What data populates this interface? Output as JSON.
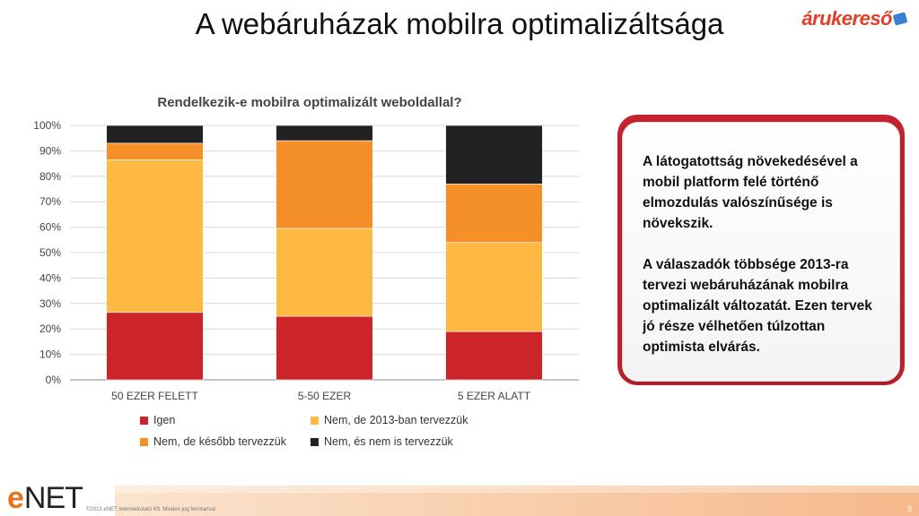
{
  "slide": {
    "title": "A webáruházak mobilra optimalizáltsága",
    "brand": "árukereső",
    "copyright": "©2013 eNET Internetkutató Kft. Minden jog fenntartva!",
    "page_number": "9",
    "footer_logo_letter": "e",
    "footer_logo_text": "NET"
  },
  "callout": {
    "paragraph_1": "A látogatottság növekedésével a mobil platform felé történő elmozdulás valószínűsége is növekszik.",
    "paragraph_2": "A válaszadók többsége 2013-ra tervezi webáruházának mobilra optimalizált változatát. Ezen tervek jó része vélhetően túlzottan optimista elvárás."
  },
  "chart_data": {
    "type": "bar",
    "stacked": true,
    "title": "Rendelkezik-e mobilra optimalizált weboldallal?",
    "categories": [
      "50 EZER FELETT",
      "5-50 EZER",
      "5 EZER ALATT"
    ],
    "ylim": [
      0,
      100
    ],
    "yticks": [
      "0%",
      "10%",
      "20%",
      "30%",
      "40%",
      "50%",
      "60%",
      "70%",
      "80%",
      "90%",
      "100%"
    ],
    "grid": true,
    "legend_position": "bottom",
    "series": [
      {
        "name": "Igen",
        "color": "#cc2529",
        "values": [
          26.5,
          25,
          19
        ]
      },
      {
        "name": "Nem, de 2013-ban tervezzük",
        "color": "#fdb941",
        "values": [
          60,
          34.5,
          35
        ]
      },
      {
        "name": "Nem, de később tervezzük",
        "color": "#f58f28",
        "values": [
          6.5,
          34.5,
          23
        ]
      },
      {
        "name": "Nem, és nem is tervezzük",
        "color": "#222222",
        "values": [
          7,
          6,
          23
        ]
      }
    ]
  }
}
